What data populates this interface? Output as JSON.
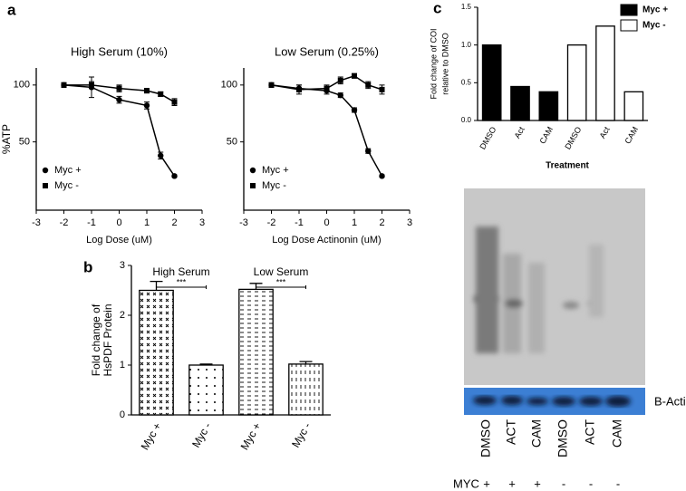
{
  "panel_labels": [
    "a",
    "b",
    "c"
  ],
  "chart_data": [
    {
      "type": "line",
      "title": "High Serum (10%)",
      "x_label": "Log Dose (uM)",
      "y_label": "%ATP",
      "x": [
        -2,
        -1,
        0,
        1,
        1.5,
        2
      ],
      "series": [
        {
          "name": "Myc +",
          "marker": "circle",
          "color": "#000000",
          "values": [
            100,
            98,
            87,
            82,
            38,
            20
          ],
          "errors": [
            2,
            9,
            3,
            3,
            3,
            1
          ]
        },
        {
          "name": "Myc -",
          "marker": "square",
          "color": "#000000",
          "values": [
            100,
            100,
            97,
            95,
            92,
            85
          ],
          "errors": [
            2,
            3,
            3,
            2,
            2,
            3
          ]
        }
      ],
      "xlim": [
        -3,
        3
      ],
      "xticks": [
        -3,
        -2,
        -1,
        0,
        1,
        2,
        3
      ],
      "ylim": [
        -10,
        115
      ],
      "yticks": [
        50,
        100
      ],
      "legend": "lower left"
    },
    {
      "type": "line",
      "title": "Low Serum (0.25%)",
      "x_label": "Log Dose Actinonin (uM)",
      "x": [
        -2,
        -1,
        0,
        0.5,
        1,
        1.5,
        2
      ],
      "series": [
        {
          "name": "Myc +",
          "marker": "circle",
          "color": "#000000",
          "values": [
            100,
            97,
            95,
            91,
            78,
            42,
            20
          ],
          "errors": [
            2,
            3,
            3,
            2,
            2,
            2,
            1
          ]
        },
        {
          "name": "Myc -",
          "marker": "square",
          "color": "#000000",
          "values": [
            100,
            96,
            97,
            104,
            108,
            100,
            96
          ],
          "errors": [
            2,
            4,
            3,
            3,
            2,
            3,
            4
          ]
        }
      ],
      "xlim": [
        -3,
        3
      ],
      "xticks": [
        -3,
        -2,
        -1,
        0,
        1,
        2,
        3
      ],
      "ylim": [
        -10,
        115
      ],
      "yticks": [
        50,
        100
      ],
      "legend": "lower left"
    },
    {
      "type": "bar",
      "y_label": [
        "Fold change of",
        "HsPDF Protein"
      ],
      "categories": [
        "Myc +",
        "Myc -",
        "Myc +",
        "Myc -"
      ],
      "values": [
        2.5,
        1.0,
        2.52,
        1.02
      ],
      "errors": [
        0.18,
        0.02,
        0.12,
        0.05
      ],
      "patterns": [
        "dots-dense",
        "dots-sparse",
        "dashes-h",
        "dashes-v"
      ],
      "color": "#000000",
      "groups": [
        {
          "label": "High Serum",
          "significance": "***"
        },
        {
          "label": "Low Serum",
          "significance": "***"
        }
      ],
      "ylim": [
        0,
        3
      ],
      "yticks": [
        0,
        1,
        2,
        3
      ]
    },
    {
      "type": "bar",
      "y_label": [
        "Fold change of COI",
        "relative to DMSO"
      ],
      "x_label": "Treatment",
      "categories": [
        "DMSO",
        "Act",
        "CAM",
        "DMSO",
        "Act",
        "CAM"
      ],
      "series": [
        {
          "name": "Myc +",
          "color": "#000000",
          "values": [
            1.0,
            0.45,
            0.38,
            null,
            null,
            null
          ]
        },
        {
          "name": "Myc -",
          "color": "#ffffff",
          "values": [
            null,
            null,
            null,
            1.0,
            1.25,
            0.38
          ]
        }
      ],
      "ylim": [
        0,
        1.5
      ],
      "yticks": [
        {
          "value": 0,
          "label": "0.0"
        },
        {
          "value": 0.5,
          "label": "0.5"
        },
        {
          "value": 1,
          "label": "1.0"
        },
        {
          "value": 1.5,
          "label": "1.5"
        }
      ],
      "legend": "upper right"
    }
  ],
  "blot": {
    "band_label": "B-Actin",
    "lanes": [
      "DMSO",
      "ACT",
      "CAM",
      "DMSO",
      "ACT",
      "CAM"
    ],
    "row_label": "MYC",
    "row_values": [
      "+",
      "+",
      "+",
      "-",
      "-",
      "-"
    ]
  }
}
